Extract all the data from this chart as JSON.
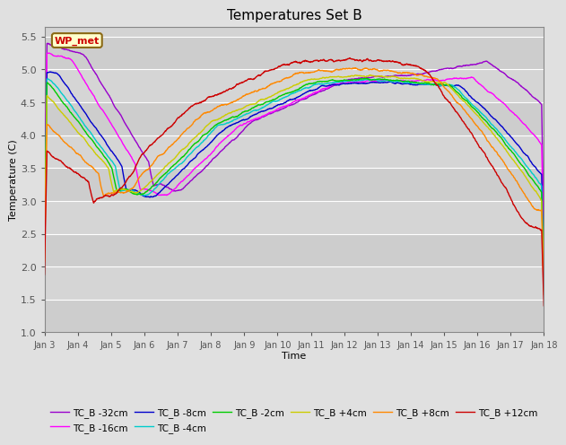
{
  "title": "Temperatures Set B",
  "xlabel": "Time",
  "ylabel": "Temperature (C)",
  "ylim": [
    1.0,
    5.65
  ],
  "yticks": [
    1.0,
    1.5,
    2.0,
    2.5,
    3.0,
    3.5,
    4.0,
    4.5,
    5.0,
    5.5
  ],
  "days": 15,
  "n_points": 2000,
  "series_order": [
    "TC_B -32cm",
    "TC_B -16cm",
    "TC_B -8cm",
    "TC_B -4cm",
    "TC_B -2cm",
    "TC_B +4cm",
    "TC_B +8cm",
    "TC_B +12cm"
  ],
  "colors": {
    "TC_B -32cm": "#9900cc",
    "TC_B -16cm": "#ff00ff",
    "TC_B -8cm": "#0000cc",
    "TC_B -4cm": "#00cccc",
    "TC_B -2cm": "#00cc00",
    "TC_B +4cm": "#cccc00",
    "TC_B +8cm": "#ff8800",
    "TC_B +12cm": "#cc0000"
  },
  "lw": 1.0,
  "wp_met_text": "WP_met",
  "wp_met_facecolor": "#ffffcc",
  "wp_met_edgecolor": "#8B6914",
  "wp_met_textcolor": "#cc0000",
  "fig_facecolor": "#e0e0e0",
  "ax_facecolor": "#d3d3d3",
  "grid_color": "#ffffff",
  "xtick_labels": [
    "Jan 3",
    "Jan 4",
    "Jan 5",
    "Jan 6",
    "Jan 7",
    "Jan 8",
    "Jan 9",
    "Jan 10",
    "Jan 11",
    "Jan 12",
    "Jan 13",
    "Jan 14",
    "Jan 15",
    "Jan 16",
    "Jan 17",
    "Jan 18"
  ],
  "legend_ncol": 6
}
